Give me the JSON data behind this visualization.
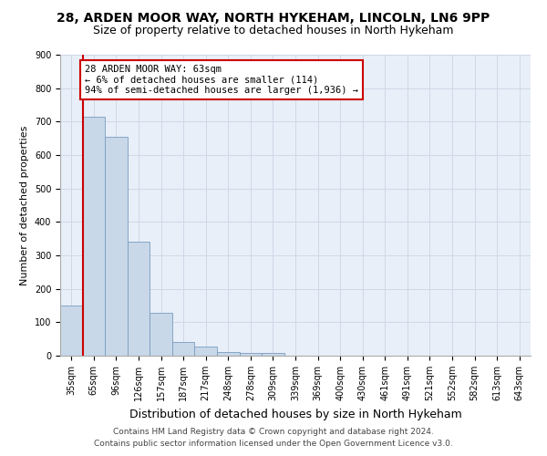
{
  "title1": "28, ARDEN MOOR WAY, NORTH HYKEHAM, LINCOLN, LN6 9PP",
  "title2": "Size of property relative to detached houses in North Hykeham",
  "xlabel": "Distribution of detached houses by size in North Hykeham",
  "ylabel": "Number of detached properties",
  "footnote1": "Contains HM Land Registry data © Crown copyright and database right 2024.",
  "footnote2": "Contains public sector information licensed under the Open Government Licence v3.0.",
  "categories": [
    "35sqm",
    "65sqm",
    "96sqm",
    "126sqm",
    "157sqm",
    "187sqm",
    "217sqm",
    "248sqm",
    "278sqm",
    "309sqm",
    "339sqm",
    "369sqm",
    "400sqm",
    "430sqm",
    "461sqm",
    "491sqm",
    "521sqm",
    "552sqm",
    "582sqm",
    "613sqm",
    "643sqm"
  ],
  "values": [
    150,
    715,
    655,
    340,
    128,
    40,
    27,
    10,
    8,
    8,
    0,
    0,
    0,
    0,
    0,
    0,
    0,
    0,
    0,
    0,
    0
  ],
  "bar_color": "#c8d8e8",
  "bar_edge_color": "#7a9cbf",
  "highlight_color": "#cc0000",
  "annotation_text": "28 ARDEN MOOR WAY: 63sqm\n← 6% of detached houses are smaller (114)\n94% of semi-detached houses are larger (1,936) →",
  "annotation_box_color": "#ffffff",
  "annotation_box_edge": "#cc0000",
  "ylim": [
    0,
    900
  ],
  "yticks": [
    0,
    100,
    200,
    300,
    400,
    500,
    600,
    700,
    800,
    900
  ],
  "grid_color": "#d0d8e8",
  "bg_color": "#e8eff8",
  "title1_fontsize": 10,
  "title2_fontsize": 9,
  "xlabel_fontsize": 9,
  "ylabel_fontsize": 8,
  "tick_fontsize": 7,
  "annotation_fontsize": 7.5,
  "footnote_fontsize": 6.5
}
